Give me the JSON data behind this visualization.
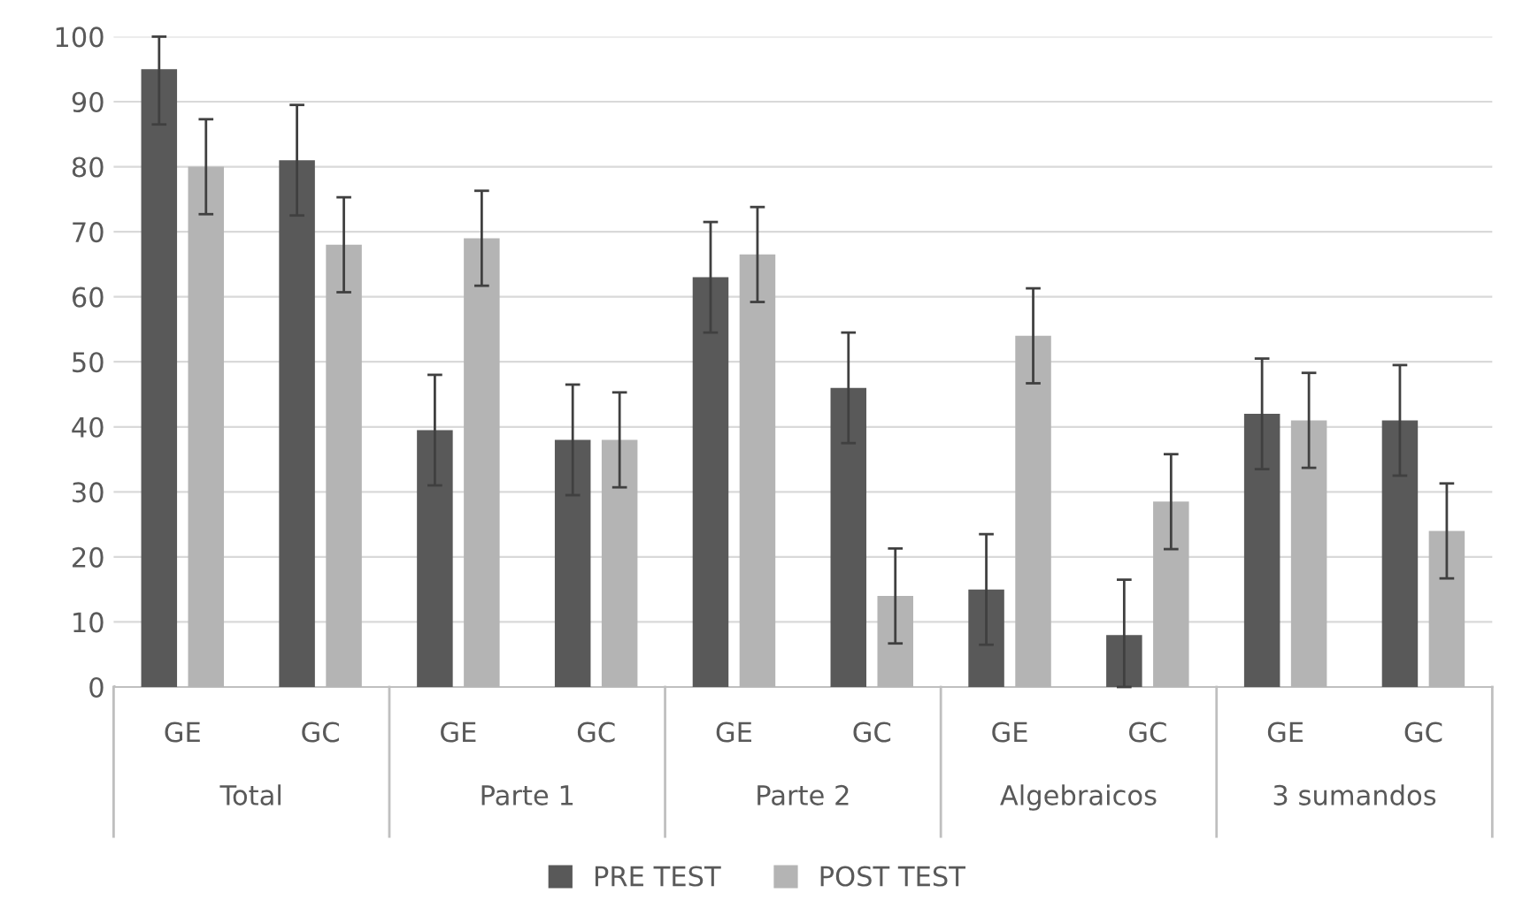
{
  "chart_data": {
    "type": "bar",
    "categories": [
      "GE",
      "GC",
      "GE",
      "GC",
      "GE",
      "GC",
      "GE",
      "GC",
      "GE",
      "GC"
    ],
    "annotations": [
      "Total",
      "Parte 1",
      "Parte 2",
      "Algebraicos",
      "3 sumandos"
    ],
    "series": [
      {
        "name": "PRE TEST",
        "color": "#595959",
        "values": [
          95,
          81,
          39.5,
          38,
          63,
          46,
          15,
          8,
          42,
          41
        ],
        "errors": [
          [
            86.5,
            100
          ],
          8.5,
          8.5,
          8.5,
          8.5,
          8.5,
          8.5,
          [
            0,
            16.5
          ],
          8.5,
          8.5
        ]
      },
      {
        "name": "POST TEST",
        "color": "#b4b4b4",
        "values": [
          80,
          68,
          69,
          38,
          66.5,
          14,
          54,
          28.5,
          41,
          24
        ],
        "errors": [
          7.3,
          7.3,
          7.3,
          7.3,
          7.3,
          7.3,
          7.3,
          7.3,
          7.3,
          7.3
        ]
      }
    ],
    "ylim": [
      0,
      100
    ],
    "yticks": [
      0,
      10,
      20,
      30,
      40,
      50,
      60,
      70,
      80,
      90,
      100
    ],
    "grid": "y",
    "legend": "bottom"
  }
}
